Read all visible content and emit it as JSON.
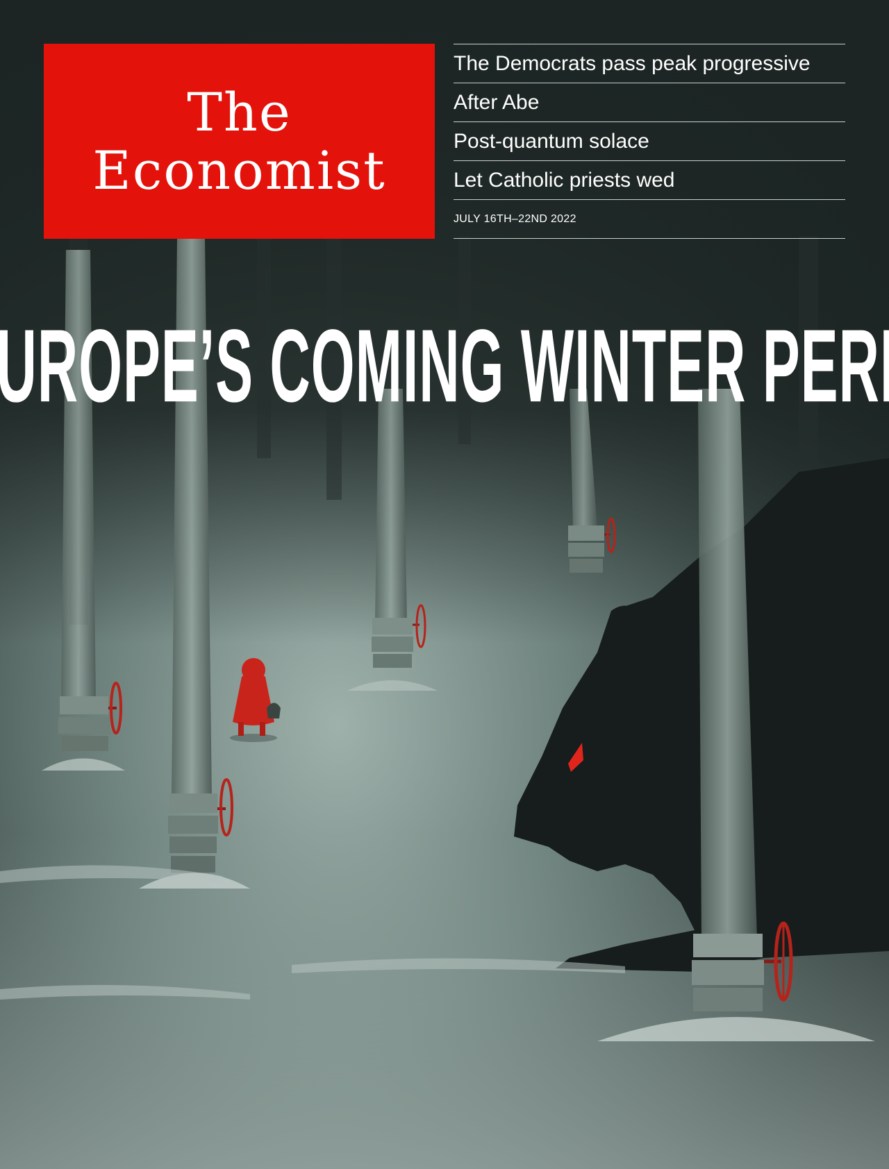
{
  "masthead": {
    "line1": "The",
    "line2": "Economist"
  },
  "headlines": [
    "The Democrats pass peak progressive",
    "After Abe",
    "Post-quantum solace",
    "Let Catholic priests wed"
  ],
  "issue_date": "JULY 16TH–22ND 2022",
  "cover_line": "EUROPE’S COMING WINTER PERIL",
  "colors": {
    "brand_red": "#e3120b",
    "background": "#1c2523",
    "valve_red": "#b5231b",
    "bear_eye": "#e0261c"
  },
  "illustration": {
    "subjects": [
      "girl-in-red-cloak",
      "bear",
      "pipeline-pipes",
      "valve-wheels",
      "snow"
    ]
  }
}
